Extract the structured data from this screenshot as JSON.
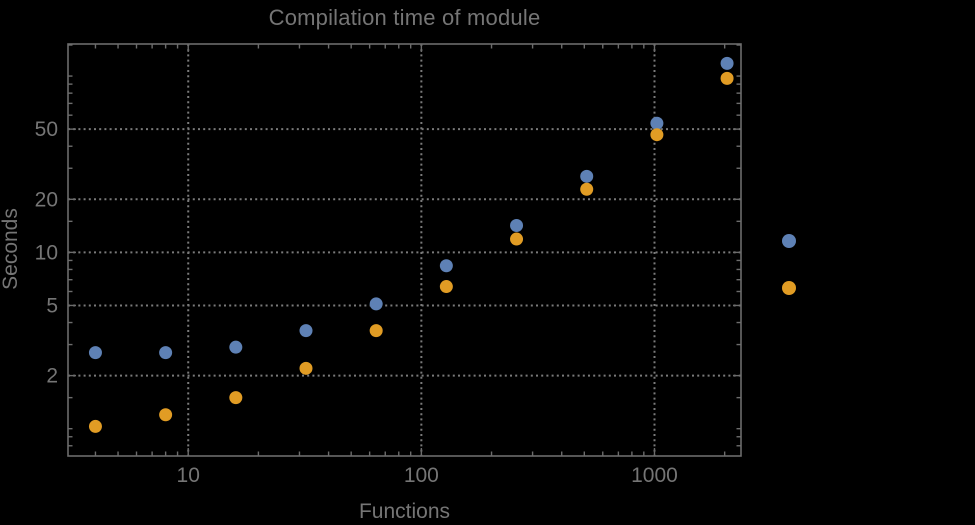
{
  "window": {
    "background_color": "#000000"
  },
  "style": {
    "frame_color": "#6c6c6c",
    "grid_color": "#7a7a7a",
    "tick_color": "#6c6c6c",
    "text_color": "#757575",
    "marker_radius": 6.5,
    "legend_marker_radius": 7
  },
  "chart_data": {
    "type": "scatter",
    "title": "Compilation time of module",
    "xlabel": "Functions",
    "ylabel": "Seconds",
    "x_scale": "log",
    "y_scale": "log",
    "xlim": [
      3.05,
      2350
    ],
    "ylim": [
      0.7,
      152
    ],
    "grid": "dotted",
    "x": [
      4,
      8,
      16,
      32,
      64,
      128,
      256,
      512,
      1024,
      2048
    ],
    "series": [
      {
        "name": "blue",
        "color": "#5e81b5",
        "values": [
          2.7,
          2.7,
          2.9,
          3.6,
          5.1,
          8.4,
          14.2,
          27,
          54,
          118
        ]
      },
      {
        "name": "orange",
        "color": "#e19c24",
        "values": [
          1.03,
          1.2,
          1.5,
          2.2,
          3.6,
          6.4,
          11.9,
          22.8,
          46.5,
          97
        ]
      }
    ],
    "x_ticks": {
      "major": [
        10,
        100,
        1000
      ],
      "major_labels": [
        "10",
        "100",
        "1000"
      ],
      "minor": [
        4,
        5,
        6,
        7,
        8,
        9,
        20,
        30,
        40,
        50,
        60,
        70,
        80,
        90,
        200,
        300,
        400,
        500,
        600,
        700,
        800,
        900,
        2000
      ]
    },
    "y_ticks": {
      "major": [
        2,
        5,
        10,
        20,
        50
      ],
      "major_labels": [
        "2",
        "5",
        "10",
        "20",
        "50"
      ],
      "minor": [
        0.8,
        0.9,
        1,
        1.5,
        3,
        4,
        6,
        7,
        8,
        9,
        15,
        30,
        40,
        60,
        70,
        80,
        90,
        100,
        150
      ]
    },
    "legend": {
      "labels_visible": false,
      "markers": [
        {
          "name": "blue",
          "color": "#5e81b5"
        },
        {
          "name": "orange",
          "color": "#e19c24"
        }
      ]
    }
  }
}
